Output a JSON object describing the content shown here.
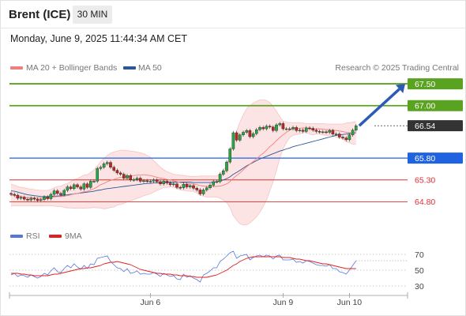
{
  "header": {
    "instrument": "Brent (ICE)",
    "timeframe": "30 MIN",
    "datetime": "Monday, June 9, 2025 11:44:34 AM CET"
  },
  "legend": {
    "ma20_label": "MA 20 + Bollinger Bands",
    "ma50_label": "MA 50",
    "ma20_color": "#f08080",
    "ma50_color": "#2b5797",
    "credit": "Research © 2025 Trading Central"
  },
  "rsi_legend": {
    "rsi_label": "RSI",
    "ma9_label": "9MA",
    "rsi_color": "#5577dd",
    "ma9_color": "#e02020"
  },
  "chart_data": {
    "type": "line",
    "price_levels": [
      {
        "label": "67.50",
        "value": 67.5,
        "kind": "resistance",
        "color": "#5aa321"
      },
      {
        "label": "67.00",
        "value": 67.0,
        "kind": "resistance",
        "color": "#5aa321"
      },
      {
        "label": "66.54",
        "value": 66.54,
        "kind": "last",
        "color": "#333333"
      },
      {
        "label": "65.80",
        "value": 65.8,
        "kind": "pivot",
        "color": "#1f63e0"
      },
      {
        "label": "65.30",
        "value": 65.3,
        "kind": "support",
        "color": "#e03030"
      },
      {
        "label": "64.80",
        "value": 64.8,
        "kind": "support",
        "color": "#e03030"
      }
    ],
    "price_ylim": [
      64.5,
      67.7
    ],
    "x_ticks": [
      "Jun 6",
      "Jun 9",
      "Jun 10"
    ],
    "x_tick_index": [
      42,
      82,
      102
    ],
    "n_bars": 110,
    "closes": [
      64.97,
      64.95,
      64.88,
      64.9,
      64.86,
      64.84,
      64.88,
      64.86,
      64.83,
      64.85,
      64.91,
      64.87,
      64.97,
      65.05,
      64.99,
      64.96,
      65.06,
      65.14,
      65.1,
      65.19,
      65.14,
      65.09,
      65.21,
      65.13,
      65.27,
      65.27,
      65.56,
      65.59,
      65.67,
      65.7,
      65.59,
      65.52,
      65.46,
      65.43,
      65.34,
      65.4,
      65.3,
      65.31,
      65.34,
      65.27,
      65.28,
      65.27,
      65.27,
      65.3,
      65.26,
      65.21,
      65.27,
      65.23,
      65.19,
      65.21,
      65.13,
      65.12,
      65.2,
      65.14,
      65.17,
      65.11,
      65.07,
      64.98,
      65.07,
      65.12,
      65.18,
      65.26,
      65.26,
      65.43,
      65.51,
      65.71,
      66.01,
      66.38,
      66.21,
      66.33,
      66.39,
      66.43,
      66.29,
      66.36,
      66.45,
      66.5,
      66.47,
      66.53,
      66.51,
      66.43,
      66.56,
      66.59,
      66.47,
      66.47,
      66.47,
      66.5,
      66.43,
      66.44,
      66.41,
      66.49,
      66.48,
      66.44,
      66.41,
      66.4,
      66.4,
      66.39,
      66.43,
      66.35,
      66.35,
      66.28,
      66.26,
      66.22,
      66.33,
      66.44,
      66.54
    ],
    "ma20": [
      64.95,
      64.95,
      64.93,
      64.92,
      64.91,
      64.9,
      64.9,
      64.89,
      64.89,
      64.88,
      64.89,
      64.89,
      64.9,
      64.91,
      64.92,
      64.92,
      64.93,
      64.94,
      64.96,
      64.98,
      64.99,
      65.01,
      65.03,
      65.04,
      65.07,
      65.1,
      65.14,
      65.19,
      65.22,
      65.26,
      65.29,
      65.31,
      65.34,
      65.36,
      65.37,
      65.38,
      65.39,
      65.4,
      65.41,
      65.41,
      65.42,
      65.41,
      65.4,
      65.38,
      65.36,
      65.34,
      65.33,
      65.31,
      65.3,
      65.28,
      65.26,
      65.24,
      65.23,
      65.22,
      65.21,
      65.21,
      65.19,
      65.17,
      65.16,
      65.15,
      65.15,
      65.15,
      65.15,
      65.16,
      65.18,
      65.21,
      65.26,
      65.34,
      65.4,
      65.46,
      65.53,
      65.6,
      65.66,
      65.72,
      65.78,
      65.85,
      65.91,
      65.98,
      66.06,
      66.12,
      66.2,
      66.27,
      66.33,
      66.39,
      66.44,
      66.47,
      66.48,
      66.48,
      66.49,
      66.49,
      66.47,
      66.46,
      66.47,
      66.47,
      66.46,
      66.45,
      66.45,
      66.44,
      66.43,
      66.42,
      66.41,
      66.39,
      66.38,
      66.37,
      66.37
    ],
    "bb_upper": [
      65.2,
      65.18,
      65.15,
      65.13,
      65.12,
      65.1,
      65.09,
      65.08,
      65.07,
      65.06,
      65.06,
      65.06,
      65.08,
      65.12,
      65.15,
      65.16,
      65.19,
      65.22,
      65.26,
      65.31,
      65.33,
      65.37,
      65.41,
      65.42,
      65.47,
      65.53,
      65.62,
      65.72,
      65.79,
      65.86,
      65.91,
      65.94,
      65.96,
      65.98,
      65.98,
      65.97,
      65.96,
      65.95,
      65.94,
      65.92,
      65.9,
      65.86,
      65.82,
      65.74,
      65.67,
      65.59,
      65.53,
      65.49,
      65.46,
      65.43,
      65.42,
      65.41,
      65.4,
      65.39,
      65.38,
      65.38,
      65.38,
      65.39,
      65.39,
      65.39,
      65.39,
      65.39,
      65.39,
      65.44,
      65.52,
      65.64,
      65.85,
      66.2,
      66.42,
      66.62,
      66.79,
      66.93,
      67.0,
      67.06,
      67.1,
      67.13,
      67.13,
      67.12,
      67.07,
      66.98,
      66.87,
      66.75,
      66.65,
      66.62,
      66.61,
      66.61,
      66.61,
      66.61,
      66.6,
      66.59,
      66.59,
      66.59,
      66.59,
      66.59,
      66.59,
      66.58,
      66.58,
      66.58,
      66.58,
      66.58,
      66.58,
      66.6,
      66.61,
      66.62,
      66.63
    ],
    "bb_lower": [
      64.7,
      64.71,
      64.71,
      64.71,
      64.71,
      64.71,
      64.71,
      64.7,
      64.71,
      64.7,
      64.71,
      64.71,
      64.71,
      64.7,
      64.69,
      64.69,
      64.67,
      64.66,
      64.66,
      64.65,
      64.65,
      64.66,
      64.65,
      64.66,
      64.66,
      64.67,
      64.66,
      64.66,
      64.64,
      64.65,
      64.67,
      64.68,
      64.72,
      64.74,
      64.76,
      64.8,
      64.82,
      64.85,
      64.88,
      64.9,
      64.94,
      64.96,
      64.98,
      65.02,
      65.06,
      65.09,
      65.13,
      65.13,
      65.14,
      65.13,
      65.1,
      65.07,
      65.06,
      65.05,
      65.04,
      65.04,
      65.0,
      64.95,
      64.93,
      64.91,
      64.91,
      64.91,
      64.91,
      64.88,
      64.84,
      64.78,
      64.67,
      64.48,
      64.38,
      64.3,
      64.27,
      64.27,
      64.32,
      64.38,
      64.46,
      64.56,
      64.69,
      64.84,
      65.05,
      65.26,
      65.52,
      65.79,
      66.01,
      66.16,
      66.27,
      66.32,
      66.34,
      66.35,
      66.38,
      66.39,
      66.35,
      66.33,
      66.35,
      66.35,
      66.33,
      66.32,
      66.32,
      66.3,
      66.28,
      66.26,
      66.24,
      66.18,
      66.15,
      66.12,
      66.11
    ],
    "ma50": [
      65.05,
      65.04,
      65.02,
      65.0,
      64.98,
      64.96,
      64.95,
      64.94,
      64.93,
      64.92,
      64.92,
      64.92,
      64.92,
      64.93,
      64.93,
      64.94,
      64.95,
      64.96,
      64.97,
      64.98,
      64.99,
      65.0,
      65.01,
      65.02,
      65.03,
      65.04,
      65.06,
      65.07,
      65.09,
      65.1,
      65.11,
      65.12,
      65.13,
      65.14,
      65.15,
      65.16,
      65.17,
      65.18,
      65.19,
      65.2,
      65.21,
      65.22,
      65.22,
      65.23,
      65.23,
      65.24,
      65.24,
      65.25,
      65.25,
      65.25,
      65.25,
      65.25,
      65.25,
      65.25,
      65.25,
      65.24,
      65.24,
      65.24,
      65.24,
      65.24,
      65.24,
      65.25,
      65.26,
      65.28,
      65.3,
      65.33,
      65.37,
      65.43,
      65.47,
      65.52,
      65.57,
      65.62,
      65.66,
      65.7,
      65.74,
      65.78,
      65.81,
      65.84,
      65.87,
      65.9,
      65.93,
      65.96,
      65.98,
      66.01,
      66.03,
      66.06,
      66.08,
      66.1,
      66.12,
      66.14,
      66.16,
      66.18,
      66.2,
      66.22,
      66.24,
      66.26,
      66.28,
      66.3,
      66.32,
      66.33,
      66.34,
      66.35,
      66.36,
      66.37,
      66.38
    ],
    "forecast_arrow": {
      "from": 66.54,
      "to": 67.5
    },
    "rsi_ylim": [
      20,
      80
    ],
    "rsi_levels": [
      70,
      50,
      30
    ],
    "rsi": [
      44,
      46,
      42,
      44,
      43,
      41,
      44,
      42,
      40,
      42,
      46,
      44,
      49,
      53,
      48,
      47,
      52,
      56,
      53,
      58,
      54,
      51,
      56,
      52,
      58,
      57,
      65,
      66,
      67,
      68,
      61,
      57,
      53,
      52,
      48,
      52,
      46,
      47,
      49,
      45,
      46,
      45,
      45,
      47,
      45,
      42,
      46,
      44,
      42,
      43,
      39,
      38,
      45,
      41,
      43,
      40,
      38,
      35,
      44,
      46,
      49,
      53,
      53,
      61,
      64,
      68,
      72,
      74,
      65,
      68,
      69,
      70,
      63,
      66,
      68,
      69,
      67,
      69,
      68,
      64,
      68,
      69,
      63,
      63,
      63,
      64,
      60,
      61,
      59,
      62,
      61,
      59,
      57,
      56,
      56,
      55,
      57,
      52,
      52,
      48,
      47,
      45,
      50,
      56,
      62
    ],
    "rsi_ma9": [
      46,
      46,
      46,
      45,
      45,
      44,
      44,
      43,
      43,
      43,
      43,
      43,
      44,
      45,
      45,
      46,
      47,
      48,
      49,
      50,
      51,
      52,
      52,
      53,
      53,
      54,
      55,
      56,
      58,
      59,
      60,
      60,
      61,
      60,
      59,
      58,
      57,
      55,
      53,
      51,
      50,
      49,
      48,
      47,
      46,
      46,
      45,
      45,
      45,
      44,
      44,
      43,
      43,
      43,
      42,
      42,
      41,
      41,
      41,
      41,
      42,
      43,
      44,
      46,
      48,
      50,
      53,
      56,
      58,
      61,
      63,
      65,
      66,
      67,
      67,
      67,
      67,
      67,
      67,
      67,
      67,
      67,
      66,
      66,
      66,
      65,
      64,
      64,
      63,
      62,
      62,
      61,
      60,
      59,
      58,
      58,
      57,
      56,
      55,
      54,
      53,
      52,
      52,
      52,
      52
    ]
  }
}
